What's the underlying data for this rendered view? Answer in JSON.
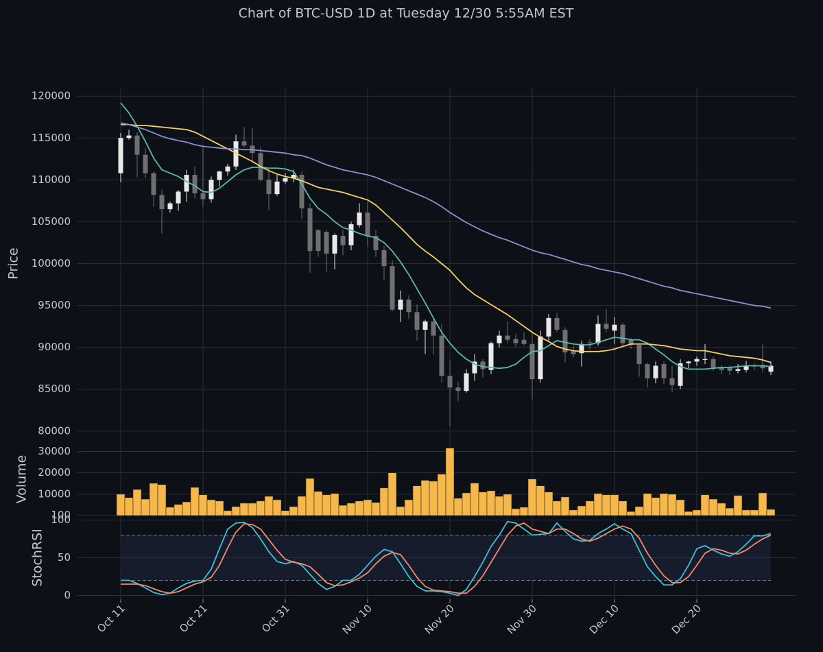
{
  "chart_data": [
    {
      "type": "candlestick",
      "title": "Chart of BTC-USD 1D at Tuesday 12/30 5:55AM EST",
      "ylabel": "Price",
      "ylim": [
        79000,
        121000
      ],
      "yticks": [
        80000,
        85000,
        90000,
        95000,
        100000,
        105000,
        110000,
        115000,
        120000
      ],
      "grid": true,
      "up_color": "#e9e9e9",
      "down_color": "#6f6f6f",
      "open": [
        110800,
        115000,
        115300,
        113000,
        110800,
        108200,
        106500,
        107200,
        108600,
        110600,
        108400,
        107700,
        110000,
        111000,
        111600,
        114600,
        114100,
        113200,
        110000,
        108300,
        109800,
        110200,
        110600,
        106600,
        104000,
        103800,
        101200,
        103300,
        102200,
        104600,
        106100,
        103300,
        101600,
        99700,
        94500,
        95700,
        94200,
        92100,
        93100,
        91400,
        86600,
        85200,
        84800,
        86900,
        88300,
        87300,
        90500,
        91400,
        91000,
        90900,
        90400,
        86200,
        91300,
        93500,
        92100,
        89600,
        89300,
        90600,
        90500,
        92800,
        92000,
        92700,
        90900,
        90300,
        88000,
        86300,
        88000,
        86300,
        85400,
        88100,
        88300,
        88500,
        88600,
        87600,
        87600,
        87200,
        87300,
        87800,
        87900,
        87100
      ],
      "high": [
        115600,
        116000,
        115700,
        113800,
        111000,
        108800,
        107400,
        108800,
        111200,
        111600,
        113900,
        110400,
        111100,
        111900,
        115400,
        116300,
        116200,
        113900,
        111400,
        110600,
        110800,
        111200,
        111000,
        107200,
        104100,
        104000,
        103600,
        104000,
        105000,
        107200,
        107400,
        104000,
        102100,
        100400,
        96800,
        96200,
        95100,
        93300,
        93400,
        92800,
        88500,
        85900,
        87400,
        89200,
        88600,
        90700,
        92000,
        93100,
        91600,
        91800,
        91700,
        92000,
        94000,
        94100,
        92400,
        90200,
        90800,
        91000,
        93800,
        94600,
        93600,
        92900,
        91100,
        90500,
        88200,
        88300,
        88300,
        87800,
        88600,
        88400,
        88900,
        90400,
        88900,
        87900,
        87800,
        88000,
        88400,
        88100,
        90300,
        88300
      ],
      "low": [
        109700,
        114800,
        110300,
        110200,
        106800,
        103600,
        106100,
        106300,
        107400,
        107800,
        106800,
        107300,
        109200,
        110500,
        111200,
        113900,
        112000,
        109700,
        106400,
        108100,
        109500,
        109700,
        105300,
        98900,
        100800,
        99000,
        99300,
        101000,
        101600,
        104300,
        102000,
        100800,
        98000,
        94300,
        93000,
        93400,
        90800,
        89200,
        89200,
        85800,
        80600,
        83600,
        84600,
        86000,
        86400,
        86800,
        90000,
        90500,
        90000,
        90200,
        83800,
        85800,
        90800,
        91800,
        88200,
        88800,
        87700,
        89700,
        90200,
        91800,
        90400,
        90100,
        89800,
        86500,
        85200,
        85700,
        85600,
        84600,
        85000,
        87500,
        87800,
        88000,
        87200,
        86800,
        86700,
        86900,
        87000,
        87300,
        87000,
        86700
      ],
      "close": [
        115000,
        115300,
        113000,
        110800,
        108200,
        106500,
        107200,
        108600,
        110600,
        108400,
        107700,
        110000,
        111000,
        111600,
        114600,
        114100,
        113200,
        110000,
        108300,
        109800,
        110200,
        110600,
        106600,
        101500,
        101500,
        101200,
        103400,
        102200,
        104700,
        106100,
        103300,
        101600,
        99700,
        94500,
        95700,
        94200,
        92100,
        93100,
        91400,
        86600,
        85200,
        84800,
        86900,
        88300,
        87400,
        90500,
        91400,
        90900,
        90500,
        90400,
        86200,
        91300,
        93500,
        92100,
        89400,
        89200,
        90400,
        90500,
        92800,
        92200,
        92700,
        90500,
        90300,
        88000,
        86300,
        87800,
        86300,
        85500,
        88100,
        88300,
        88600,
        88600,
        87500,
        87300,
        87200,
        87400,
        87800,
        87700,
        87500,
        87800
      ],
      "series": [
        {
          "color": "#5cb8a8",
          "values": [
            119200,
            118000,
            116400,
            114600,
            112600,
            111200,
            110800,
            110400,
            109800,
            109300,
            108600,
            108500,
            109000,
            109800,
            110600,
            111200,
            111500,
            111500,
            111400,
            111400,
            111300,
            111000,
            109500,
            107800,
            106600,
            105900,
            105000,
            104300,
            104000,
            103600,
            103300,
            103100,
            102500,
            101500,
            100200,
            98700,
            97000,
            95300,
            93500,
            91800,
            90500,
            89400,
            88600,
            88000,
            87700,
            87600,
            87500,
            87600,
            88000,
            88800,
            89500,
            89600,
            90200,
            90800,
            90600,
            90400,
            90300,
            90300,
            90600,
            90900,
            91200,
            91100,
            90900,
            90900,
            90500,
            89800,
            89100,
            88300,
            87700,
            87400,
            87400,
            87400,
            87500,
            87600,
            87600,
            87700,
            87800,
            87800,
            87800,
            87700
          ]
        },
        {
          "color": "#f6cf63",
          "values": [
            116600,
            116600,
            116500,
            116500,
            116400,
            116300,
            116200,
            116100,
            116000,
            115700,
            115200,
            114700,
            114200,
            113700,
            113200,
            112700,
            112200,
            111600,
            111100,
            110700,
            110400,
            110200,
            109900,
            109500,
            109100,
            108900,
            108700,
            108500,
            108200,
            107900,
            107600,
            107000,
            106100,
            105200,
            104300,
            103300,
            102300,
            101500,
            100800,
            100000,
            99200,
            98100,
            97100,
            96300,
            95700,
            95100,
            94500,
            93900,
            93200,
            92500,
            91800,
            91200,
            90700,
            90100,
            89800,
            89600,
            89500,
            89500,
            89500,
            89600,
            89800,
            90100,
            90400,
            90400,
            90400,
            90300,
            90200,
            90000,
            89800,
            89700,
            89600,
            89600,
            89400,
            89200,
            89000,
            88900,
            88800,
            88700,
            88500,
            88200
          ]
        },
        {
          "color": "#8c90d2",
          "values": [
            116800,
            116600,
            116300,
            116000,
            115600,
            115200,
            114900,
            114700,
            114500,
            114200,
            114000,
            113900,
            113800,
            113700,
            113700,
            113600,
            113600,
            113500,
            113400,
            113300,
            113200,
            113000,
            112900,
            112600,
            112200,
            111800,
            111500,
            111200,
            111000,
            110800,
            110600,
            110300,
            109900,
            109500,
            109100,
            108700,
            108300,
            107900,
            107400,
            106800,
            106100,
            105500,
            104900,
            104400,
            103900,
            103500,
            103100,
            102800,
            102400,
            102000,
            101600,
            101300,
            101100,
            100800,
            100500,
            100200,
            99900,
            99700,
            99400,
            99200,
            99000,
            98800,
            98500,
            98200,
            97900,
            97600,
            97300,
            97100,
            96800,
            96600,
            96400,
            96200,
            96000,
            95800,
            95600,
            95400,
            95200,
            95000,
            94900,
            94700
          ]
        }
      ]
    },
    {
      "type": "bar",
      "ylabel": "Volume",
      "ylim": [
        0,
        34000
      ],
      "yticks": [
        100,
        10000,
        20000,
        30000
      ],
      "grid": true,
      "color": "#f7b84b",
      "values": [
        10000,
        8400,
        12200,
        7700,
        15100,
        14500,
        3900,
        5200,
        6400,
        13200,
        9700,
        7400,
        6800,
        2300,
        4200,
        5800,
        5800,
        6800,
        9000,
        7400,
        2300,
        4200,
        9000,
        17400,
        11300,
        9700,
        10300,
        4800,
        5800,
        6800,
        7400,
        6100,
        12900,
        20000,
        4200,
        7400,
        13900,
        16500,
        16100,
        19400,
        31600,
        8100,
        10600,
        15200,
        11000,
        11600,
        9000,
        10000,
        3200,
        3900,
        17100,
        13900,
        11000,
        6800,
        8700,
        2600,
        4500,
        6800,
        10300,
        9700,
        9700,
        6800,
        1900,
        4200,
        10300,
        8400,
        10300,
        10000,
        7400,
        1900,
        2600,
        9700,
        7700,
        5800,
        3500,
        9400,
        2600,
        2600,
        10600,
        2900
      ]
    },
    {
      "type": "line",
      "ylabel": "StochRSI",
      "ylim": [
        -5,
        105
      ],
      "yticks": [
        0,
        50,
        100
      ],
      "grid": true,
      "hlines": [
        20,
        80
      ],
      "band_color": "#161c2c",
      "categories": [
        "Oct 11",
        null,
        null,
        null,
        null,
        null,
        null,
        null,
        null,
        null,
        "Oct 21",
        null,
        null,
        null,
        null,
        null,
        null,
        null,
        null,
        null,
        "Oct 31",
        null,
        null,
        null,
        null,
        null,
        null,
        null,
        null,
        null,
        "Nov 10",
        null,
        null,
        null,
        null,
        null,
        null,
        null,
        null,
        null,
        "Nov 20",
        null,
        null,
        null,
        null,
        null,
        null,
        null,
        null,
        null,
        "Nov 30",
        null,
        null,
        null,
        null,
        null,
        null,
        null,
        null,
        null,
        "Dec 10",
        null,
        null,
        null,
        null,
        null,
        null,
        null,
        null,
        null,
        "Dec 20",
        null,
        null,
        null,
        null,
        null,
        null,
        null,
        null,
        null
      ],
      "series": [
        {
          "color": "#3ec0d8",
          "values": [
            20,
            20,
            16,
            10,
            4,
            1,
            3,
            10,
            16,
            19,
            20,
            35,
            62,
            88,
            96,
            97,
            90,
            75,
            58,
            45,
            42,
            45,
            40,
            28,
            16,
            8,
            12,
            20,
            20,
            28,
            40,
            52,
            61,
            58,
            42,
            25,
            12,
            6,
            6,
            5,
            3,
            0,
            8,
            25,
            44,
            65,
            80,
            98,
            96,
            88,
            80,
            81,
            82,
            96,
            85,
            75,
            72,
            73,
            82,
            88,
            95,
            88,
            82,
            60,
            38,
            25,
            14,
            14,
            22,
            40,
            62,
            66,
            60,
            55,
            52,
            58,
            68,
            79,
            79,
            82
          ]
        },
        {
          "color": "#f08b6f",
          "values": [
            15,
            15,
            15,
            13,
            9,
            5,
            3,
            5,
            10,
            15,
            18,
            24,
            40,
            63,
            84,
            95,
            94,
            88,
            74,
            60,
            48,
            44,
            42,
            38,
            28,
            17,
            13,
            14,
            18,
            23,
            30,
            42,
            52,
            57,
            54,
            40,
            24,
            12,
            7,
            6,
            5,
            3,
            3,
            12,
            26,
            44,
            62,
            80,
            92,
            96,
            88,
            85,
            82,
            88,
            88,
            82,
            75,
            72,
            76,
            82,
            88,
            92,
            88,
            76,
            56,
            40,
            26,
            17,
            17,
            25,
            40,
            56,
            62,
            60,
            56,
            55,
            60,
            68,
            75,
            80
          ]
        }
      ]
    }
  ]
}
